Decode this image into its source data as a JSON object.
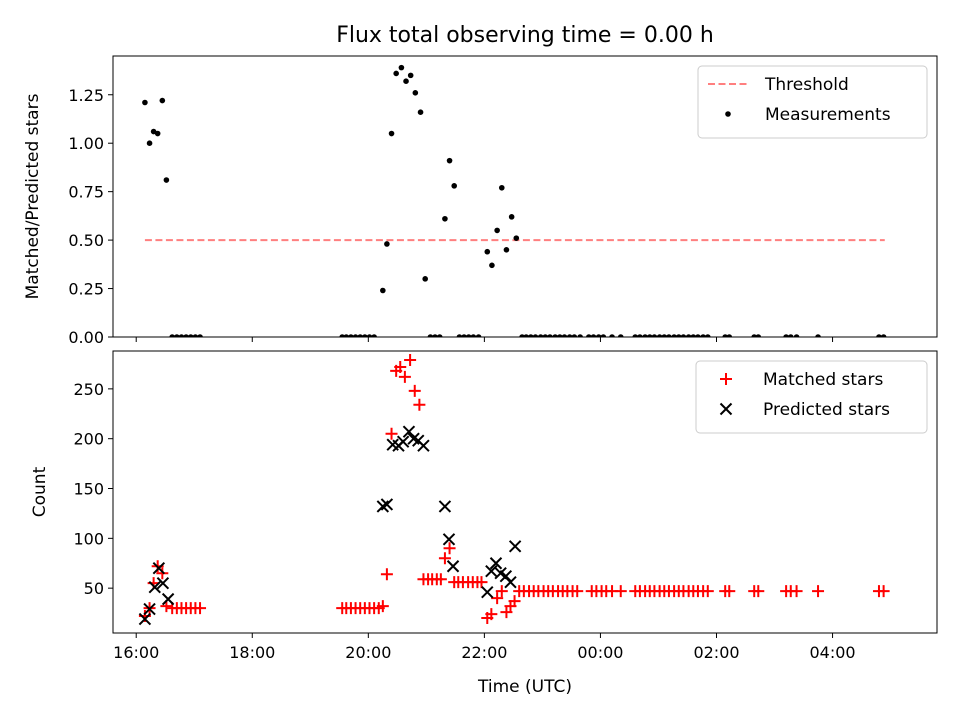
{
  "figure": {
    "title": "Flux total observing time = 0.00 h",
    "xlabel": "Time (UTC)"
  },
  "chart_data": [
    {
      "type": "scatter",
      "title": "Flux total observing time = 0.00 h",
      "ylabel": "Matched/Predicted stars",
      "xlabel": "",
      "x_unit": "hours after 16:00 UTC",
      "xlim": [
        15.6,
        29.8
      ],
      "ylim": [
        0,
        1.45
      ],
      "y_ticks": [
        0.0,
        0.25,
        0.5,
        0.75,
        1.0,
        1.25
      ],
      "y_tick_labels": [
        "0.00",
        "0.25",
        "0.50",
        "0.75",
        "1.00",
        "1.25"
      ],
      "x_ticks": [
        16,
        18,
        20,
        22,
        24,
        26,
        28
      ],
      "x_tick_labels": [],
      "legend": {
        "position": "top-right",
        "entries": [
          "Threshold",
          "Measurements"
        ]
      },
      "grid": false,
      "threshold": {
        "name": "Threshold",
        "value": 0.5,
        "x_range": [
          16.15,
          28.9
        ],
        "color": "#ff7f7f",
        "style": "dashed"
      },
      "series": [
        {
          "name": "Measurements",
          "marker": "dot",
          "color": "#000000",
          "points": [
            [
              16.15,
              1.21
            ],
            [
              16.23,
              1.0
            ],
            [
              16.3,
              1.06
            ],
            [
              16.37,
              1.05
            ],
            [
              16.45,
              1.22
            ],
            [
              16.52,
              0.81
            ],
            [
              16.62,
              0
            ],
            [
              16.7,
              0
            ],
            [
              16.78,
              0
            ],
            [
              16.86,
              0
            ],
            [
              16.94,
              0
            ],
            [
              17.02,
              0
            ],
            [
              17.1,
              0
            ],
            [
              19.55,
              0
            ],
            [
              19.62,
              0
            ],
            [
              19.7,
              0
            ],
            [
              19.78,
              0
            ],
            [
              19.86,
              0
            ],
            [
              19.94,
              0
            ],
            [
              20.02,
              0
            ],
            [
              20.1,
              0
            ],
            [
              20.25,
              0.24
            ],
            [
              20.32,
              0.48
            ],
            [
              20.4,
              1.05
            ],
            [
              20.48,
              1.36
            ],
            [
              20.57,
              1.39
            ],
            [
              20.65,
              1.32
            ],
            [
              20.73,
              1.35
            ],
            [
              20.81,
              1.26
            ],
            [
              20.9,
              1.16
            ],
            [
              20.98,
              0.3
            ],
            [
              21.07,
              0
            ],
            [
              21.15,
              0
            ],
            [
              21.23,
              0
            ],
            [
              21.32,
              0.61
            ],
            [
              21.4,
              0.91
            ],
            [
              21.48,
              0.78
            ],
            [
              21.57,
              0
            ],
            [
              21.65,
              0
            ],
            [
              21.73,
              0
            ],
            [
              21.81,
              0
            ],
            [
              21.9,
              0
            ],
            [
              22.05,
              0.44
            ],
            [
              22.13,
              0.37
            ],
            [
              22.22,
              0.55
            ],
            [
              22.3,
              0.77
            ],
            [
              22.38,
              0.45
            ],
            [
              22.47,
              0.62
            ],
            [
              22.55,
              0.51
            ],
            [
              22.65,
              0
            ],
            [
              22.72,
              0
            ],
            [
              22.8,
              0
            ],
            [
              22.88,
              0
            ],
            [
              22.97,
              0
            ],
            [
              23.05,
              0
            ],
            [
              23.13,
              0
            ],
            [
              23.22,
              0
            ],
            [
              23.3,
              0
            ],
            [
              23.38,
              0
            ],
            [
              23.47,
              0
            ],
            [
              23.55,
              0
            ],
            [
              23.65,
              0
            ],
            [
              23.8,
              0
            ],
            [
              23.88,
              0
            ],
            [
              23.97,
              0
            ],
            [
              24.05,
              0
            ],
            [
              24.2,
              0
            ],
            [
              24.35,
              0
            ],
            [
              24.6,
              0
            ],
            [
              24.68,
              0
            ],
            [
              24.77,
              0
            ],
            [
              24.85,
              0
            ],
            [
              24.93,
              0
            ],
            [
              25.02,
              0
            ],
            [
              25.1,
              0
            ],
            [
              25.18,
              0
            ],
            [
              25.27,
              0
            ],
            [
              25.35,
              0
            ],
            [
              25.43,
              0
            ],
            [
              25.52,
              0
            ],
            [
              25.6,
              0
            ],
            [
              25.68,
              0
            ],
            [
              25.77,
              0
            ],
            [
              25.85,
              0
            ],
            [
              26.15,
              0
            ],
            [
              26.22,
              0
            ],
            [
              26.65,
              0
            ],
            [
              26.72,
              0
            ],
            [
              27.2,
              0
            ],
            [
              27.28,
              0
            ],
            [
              27.38,
              0
            ],
            [
              27.75,
              0
            ],
            [
              28.8,
              0
            ],
            [
              28.88,
              0
            ]
          ]
        }
      ]
    },
    {
      "type": "scatter",
      "title": "",
      "ylabel": "Count",
      "xlabel": "Time (UTC)",
      "x_unit": "hours after 16:00 UTC",
      "xlim": [
        15.6,
        29.8
      ],
      "ylim": [
        5,
        288
      ],
      "y_ticks": [
        50,
        100,
        150,
        200,
        250
      ],
      "y_tick_labels": [
        "50",
        "100",
        "150",
        "200",
        "250"
      ],
      "x_ticks": [
        16,
        18,
        20,
        22,
        24,
        26,
        28
      ],
      "x_tick_labels": [
        "16:00",
        "18:00",
        "20:00",
        "22:00",
        "00:00",
        "02:00",
        "04:00"
      ],
      "legend": {
        "position": "top-right",
        "entries": [
          "Matched stars",
          "Predicted stars"
        ]
      },
      "grid": false,
      "series": [
        {
          "name": "Matched stars",
          "marker": "plus",
          "color": "#ff0000",
          "points": [
            [
              16.15,
              22
            ],
            [
              16.23,
              30
            ],
            [
              16.3,
              55
            ],
            [
              16.37,
              72
            ],
            [
              16.45,
              65
            ],
            [
              16.52,
              32
            ],
            [
              16.62,
              30
            ],
            [
              16.7,
              30
            ],
            [
              16.78,
              30
            ],
            [
              16.86,
              30
            ],
            [
              16.94,
              30
            ],
            [
              17.02,
              30
            ],
            [
              17.1,
              30
            ],
            [
              19.55,
              30
            ],
            [
              19.62,
              30
            ],
            [
              19.7,
              30
            ],
            [
              19.78,
              30
            ],
            [
              19.86,
              30
            ],
            [
              19.94,
              30
            ],
            [
              20.02,
              30
            ],
            [
              20.1,
              30
            ],
            [
              20.18,
              30
            ],
            [
              20.25,
              32
            ],
            [
              20.32,
              64
            ],
            [
              20.4,
              205
            ],
            [
              20.48,
              268
            ],
            [
              20.55,
              272
            ],
            [
              20.63,
              262
            ],
            [
              20.72,
              279
            ],
            [
              20.8,
              248
            ],
            [
              20.88,
              234
            ],
            [
              20.95,
              59
            ],
            [
              21.03,
              59
            ],
            [
              21.1,
              59
            ],
            [
              21.18,
              59
            ],
            [
              21.25,
              59
            ],
            [
              21.32,
              80
            ],
            [
              21.4,
              90
            ],
            [
              21.48,
              56
            ],
            [
              21.55,
              56
            ],
            [
              21.63,
              56
            ],
            [
              21.72,
              56
            ],
            [
              21.8,
              56
            ],
            [
              21.88,
              56
            ],
            [
              21.95,
              56
            ],
            [
              22.05,
              20
            ],
            [
              22.12,
              24
            ],
            [
              22.22,
              40
            ],
            [
              22.3,
              47
            ],
            [
              22.38,
              26
            ],
            [
              22.45,
              32
            ],
            [
              22.52,
              37
            ],
            [
              22.6,
              47
            ],
            [
              22.68,
              47
            ],
            [
              22.77,
              47
            ],
            [
              22.85,
              47
            ],
            [
              22.93,
              47
            ],
            [
              23.02,
              47
            ],
            [
              23.1,
              47
            ],
            [
              23.18,
              47
            ],
            [
              23.27,
              47
            ],
            [
              23.35,
              47
            ],
            [
              23.43,
              47
            ],
            [
              23.52,
              47
            ],
            [
              23.6,
              47
            ],
            [
              23.85,
              47
            ],
            [
              23.93,
              47
            ],
            [
              24.02,
              47
            ],
            [
              24.1,
              47
            ],
            [
              24.2,
              47
            ],
            [
              24.35,
              47
            ],
            [
              24.6,
              47
            ],
            [
              24.68,
              47
            ],
            [
              24.77,
              47
            ],
            [
              24.85,
              47
            ],
            [
              24.93,
              47
            ],
            [
              25.02,
              47
            ],
            [
              25.1,
              47
            ],
            [
              25.18,
              47
            ],
            [
              25.27,
              47
            ],
            [
              25.35,
              47
            ],
            [
              25.43,
              47
            ],
            [
              25.52,
              47
            ],
            [
              25.6,
              47
            ],
            [
              25.68,
              47
            ],
            [
              25.77,
              47
            ],
            [
              25.85,
              47
            ],
            [
              26.15,
              47
            ],
            [
              26.22,
              47
            ],
            [
              26.65,
              47
            ],
            [
              26.72,
              47
            ],
            [
              27.2,
              47
            ],
            [
              27.28,
              47
            ],
            [
              27.38,
              47
            ],
            [
              27.75,
              47
            ],
            [
              28.8,
              47
            ],
            [
              28.88,
              47
            ]
          ]
        },
        {
          "name": "Predicted stars",
          "marker": "x",
          "color": "#000000",
          "points": [
            [
              16.15,
              19
            ],
            [
              16.23,
              29
            ],
            [
              16.32,
              51
            ],
            [
              16.39,
              70
            ],
            [
              16.46,
              55
            ],
            [
              16.55,
              39
            ],
            [
              20.25,
              132
            ],
            [
              20.32,
              134
            ],
            [
              20.42,
              194
            ],
            [
              20.52,
              193
            ],
            [
              20.6,
              197
            ],
            [
              20.7,
              207
            ],
            [
              20.78,
              200
            ],
            [
              20.86,
              198
            ],
            [
              20.95,
              193
            ],
            [
              21.32,
              132
            ],
            [
              21.39,
              99
            ],
            [
              21.46,
              72
            ],
            [
              22.05,
              46
            ],
            [
              22.12,
              67
            ],
            [
              22.2,
              75
            ],
            [
              22.28,
              65
            ],
            [
              22.37,
              62
            ],
            [
              22.45,
              56
            ],
            [
              22.53,
              92
            ]
          ]
        }
      ]
    }
  ]
}
